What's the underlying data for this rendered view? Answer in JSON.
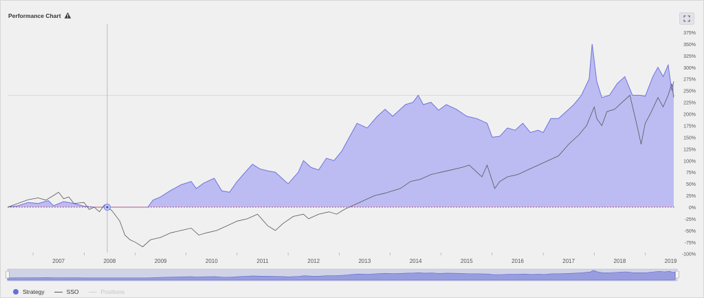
{
  "header": {
    "title": "Performance Chart",
    "warning_icon": "warning-triangle-icon",
    "expand_icon": "expand-icon"
  },
  "colors": {
    "strategy_fill": "#bcbcf2",
    "strategy_line": "#6d72dc",
    "benchmark_line": "#555555",
    "zero_line": "#e04040",
    "accent": "#6272d8"
  },
  "legend": {
    "items": [
      {
        "label": "Strategy",
        "style": "dot"
      },
      {
        "label": "SSO",
        "style": "line"
      },
      {
        "label": "Positions",
        "style": "line-dim"
      }
    ]
  },
  "chart_data": {
    "type": "area",
    "title": "Performance Chart",
    "x_ticks": [
      "2007",
      "2008",
      "2009",
      "2010",
      "2011",
      "2012",
      "2013",
      "2014",
      "2015",
      "2016",
      "2017",
      "2018",
      "2019"
    ],
    "y_ticks": [
      "375%",
      "350%",
      "325%",
      "300%",
      "275%",
      "250%",
      "225%",
      "200%",
      "175%",
      "150%",
      "125%",
      "100%",
      "75%",
      "50%",
      "25%",
      "0%",
      "-25%",
      "-50%",
      "-75%",
      "-100%"
    ],
    "ylim": [
      -100,
      375
    ],
    "xlim": [
      2006.5,
      2019.6
    ],
    "grid": "horizontal line at 240%",
    "series": [
      {
        "name": "Strategy",
        "style": "area",
        "points": [
          [
            2006.5,
            0
          ],
          [
            2006.7,
            3
          ],
          [
            2006.9,
            10
          ],
          [
            2007.1,
            8
          ],
          [
            2007.3,
            14
          ],
          [
            2007.4,
            3
          ],
          [
            2007.6,
            12
          ],
          [
            2007.8,
            8
          ],
          [
            2008.0,
            2
          ],
          [
            2008.2,
            0
          ],
          [
            2008.4,
            0
          ],
          [
            2008.6,
            0
          ],
          [
            2009.0,
            0
          ],
          [
            2009.25,
            0
          ],
          [
            2009.35,
            15
          ],
          [
            2009.5,
            22
          ],
          [
            2009.7,
            36
          ],
          [
            2009.9,
            48
          ],
          [
            2010.1,
            55
          ],
          [
            2010.2,
            40
          ],
          [
            2010.35,
            52
          ],
          [
            2010.55,
            62
          ],
          [
            2010.7,
            35
          ],
          [
            2010.85,
            32
          ],
          [
            2011.0,
            55
          ],
          [
            2011.2,
            80
          ],
          [
            2011.3,
            92
          ],
          [
            2011.45,
            82
          ],
          [
            2011.6,
            78
          ],
          [
            2011.75,
            75
          ],
          [
            2011.9,
            60
          ],
          [
            2012.0,
            50
          ],
          [
            2012.2,
            75
          ],
          [
            2012.3,
            100
          ],
          [
            2012.45,
            85
          ],
          [
            2012.6,
            80
          ],
          [
            2012.75,
            105
          ],
          [
            2012.9,
            100
          ],
          [
            2013.05,
            120
          ],
          [
            2013.2,
            150
          ],
          [
            2013.35,
            180
          ],
          [
            2013.55,
            170
          ],
          [
            2013.75,
            195
          ],
          [
            2013.9,
            210
          ],
          [
            2014.05,
            195
          ],
          [
            2014.15,
            205
          ],
          [
            2014.3,
            220
          ],
          [
            2014.45,
            225
          ],
          [
            2014.55,
            240
          ],
          [
            2014.65,
            220
          ],
          [
            2014.8,
            225
          ],
          [
            2014.95,
            208
          ],
          [
            2015.1,
            220
          ],
          [
            2015.3,
            210
          ],
          [
            2015.5,
            195
          ],
          [
            2015.7,
            190
          ],
          [
            2015.9,
            180
          ],
          [
            2016.0,
            150
          ],
          [
            2016.15,
            152
          ],
          [
            2016.3,
            170
          ],
          [
            2016.45,
            165
          ],
          [
            2016.6,
            180
          ],
          [
            2016.75,
            160
          ],
          [
            2016.9,
            165
          ],
          [
            2017.0,
            160
          ],
          [
            2017.15,
            190
          ],
          [
            2017.3,
            190
          ],
          [
            2017.45,
            205
          ],
          [
            2017.6,
            220
          ],
          [
            2017.75,
            240
          ],
          [
            2017.9,
            275
          ],
          [
            2017.96,
            350
          ],
          [
            2018.05,
            270
          ],
          [
            2018.15,
            235
          ],
          [
            2018.3,
            240
          ],
          [
            2018.45,
            265
          ],
          [
            2018.6,
            280
          ],
          [
            2018.75,
            240
          ],
          [
            2018.9,
            240
          ],
          [
            2019.0,
            238
          ],
          [
            2019.15,
            280
          ],
          [
            2019.25,
            300
          ],
          [
            2019.35,
            280
          ],
          [
            2019.45,
            305
          ],
          [
            2019.52,
            250
          ],
          [
            2019.56,
            270
          ]
        ]
      },
      {
        "name": "SSO",
        "style": "line",
        "points": [
          [
            2006.5,
            0
          ],
          [
            2006.7,
            8
          ],
          [
            2006.9,
            16
          ],
          [
            2007.1,
            20
          ],
          [
            2007.25,
            15
          ],
          [
            2007.4,
            25
          ],
          [
            2007.5,
            32
          ],
          [
            2007.6,
            18
          ],
          [
            2007.7,
            22
          ],
          [
            2007.8,
            8
          ],
          [
            2008.0,
            10
          ],
          [
            2008.1,
            -5
          ],
          [
            2008.2,
            0
          ],
          [
            2008.3,
            -10
          ],
          [
            2008.4,
            5
          ],
          [
            2008.55,
            -8
          ],
          [
            2008.7,
            -30
          ],
          [
            2008.8,
            -60
          ],
          [
            2008.9,
            -70
          ],
          [
            2009.0,
            -75
          ],
          [
            2009.15,
            -85
          ],
          [
            2009.3,
            -70
          ],
          [
            2009.5,
            -65
          ],
          [
            2009.7,
            -55
          ],
          [
            2009.9,
            -50
          ],
          [
            2010.1,
            -45
          ],
          [
            2010.25,
            -60
          ],
          [
            2010.4,
            -55
          ],
          [
            2010.6,
            -50
          ],
          [
            2010.8,
            -40
          ],
          [
            2011.0,
            -30
          ],
          [
            2011.2,
            -25
          ],
          [
            2011.4,
            -15
          ],
          [
            2011.6,
            -40
          ],
          [
            2011.75,
            -50
          ],
          [
            2011.9,
            -35
          ],
          [
            2012.1,
            -20
          ],
          [
            2012.3,
            -15
          ],
          [
            2012.4,
            -25
          ],
          [
            2012.6,
            -15
          ],
          [
            2012.8,
            -10
          ],
          [
            2012.95,
            -15
          ],
          [
            2013.1,
            -5
          ],
          [
            2013.3,
            5
          ],
          [
            2013.5,
            15
          ],
          [
            2013.7,
            25
          ],
          [
            2013.9,
            30
          ],
          [
            2014.05,
            35
          ],
          [
            2014.2,
            40
          ],
          [
            2014.4,
            55
          ],
          [
            2014.6,
            60
          ],
          [
            2014.8,
            70
          ],
          [
            2015.0,
            75
          ],
          [
            2015.2,
            80
          ],
          [
            2015.4,
            85
          ],
          [
            2015.55,
            90
          ],
          [
            2015.7,
            75
          ],
          [
            2015.8,
            65
          ],
          [
            2015.9,
            90
          ],
          [
            2016.05,
            40
          ],
          [
            2016.15,
            55
          ],
          [
            2016.3,
            65
          ],
          [
            2016.5,
            70
          ],
          [
            2016.7,
            80
          ],
          [
            2016.9,
            90
          ],
          [
            2017.1,
            100
          ],
          [
            2017.3,
            110
          ],
          [
            2017.5,
            135
          ],
          [
            2017.7,
            155
          ],
          [
            2017.85,
            175
          ],
          [
            2018.0,
            215
          ],
          [
            2018.05,
            190
          ],
          [
            2018.15,
            175
          ],
          [
            2018.25,
            205
          ],
          [
            2018.4,
            210
          ],
          [
            2018.55,
            225
          ],
          [
            2018.7,
            240
          ],
          [
            2018.85,
            170
          ],
          [
            2018.92,
            135
          ],
          [
            2019.0,
            180
          ],
          [
            2019.1,
            200
          ],
          [
            2019.25,
            235
          ],
          [
            2019.35,
            215
          ],
          [
            2019.45,
            240
          ],
          [
            2019.52,
            265
          ],
          [
            2019.56,
            235
          ]
        ]
      }
    ]
  }
}
